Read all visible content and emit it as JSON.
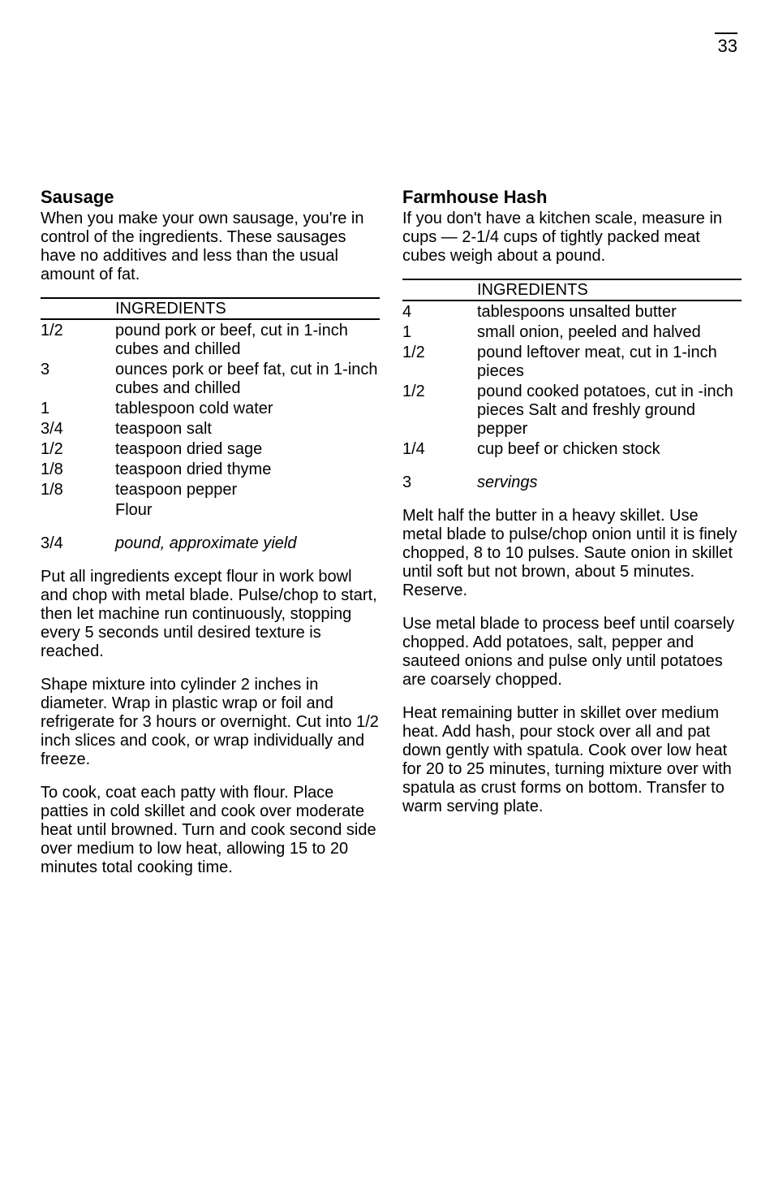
{
  "page_number": "33",
  "recipes": [
    {
      "title": "Sausage",
      "intro": "When you make your own sausage, you're in control of the ingredients. These sausages have no additives and less than the usual amount of fat.",
      "ingredients_label": "INGREDIENTS",
      "ingredients": [
        {
          "qty": "1/2",
          "text": "pound pork or beef, cut in 1-inch cubes and chilled"
        },
        {
          "qty": "3",
          "text": "ounces pork or beef fat, cut in 1-inch cubes and chilled"
        },
        {
          "qty": "1",
          "text": "tablespoon cold water"
        },
        {
          "qty": "3/4",
          "text": "teaspoon salt"
        },
        {
          "qty": "1/2",
          "text": "teaspoon dried sage"
        },
        {
          "qty": "1/8",
          "text": "teaspoon dried thyme"
        },
        {
          "qty": "1/8",
          "text": "teaspoon pepper"
        },
        {
          "qty": "",
          "text": "Flour"
        }
      ],
      "yield": {
        "qty": "3/4",
        "text": "pound, approximate yield"
      },
      "body": [
        "Put all ingredients except flour in work bowl and chop with metal blade. Pulse/chop to start, then let machine run continuously, stopping every 5 seconds until desired texture is reached.",
        "Shape mixture into cylinder 2 inches in diameter. Wrap in plastic wrap or foil and refrigerate for 3 hours or overnight. Cut into 1/2 inch slices and cook, or wrap individually and freeze.",
        "To cook, coat each patty with flour. Place patties in cold skillet and cook over moderate heat until browned. Turn and cook second side over medium to low heat, allowing 15 to 20 minutes total cooking time."
      ]
    },
    {
      "title": "Farmhouse Hash",
      "intro": "If you don't have a kitchen scale, measure in cups — 2-1/4 cups of tightly packed meat cubes weigh about a pound.",
      "ingredients_label": "INGREDIENTS",
      "ingredients": [
        {
          "qty": "4",
          "text": "tablespoons unsalted butter"
        },
        {
          "qty": "1",
          "text": "small onion, peeled and halved"
        },
        {
          "qty": "1/2",
          "text": "pound leftover meat, cut in 1-inch pieces"
        },
        {
          "qty": "1/2",
          "text": "pound cooked potatoes, cut in -inch pieces Salt and freshly ground pepper"
        },
        {
          "qty": "1/4",
          "text": "cup beef or chicken stock"
        }
      ],
      "yield": {
        "qty": "3",
        "text": "servings"
      },
      "body": [
        "Melt half the butter in a heavy skillet. Use metal blade to pulse/chop onion until it is finely chopped, 8 to 10 pulses. Saute onion in skillet until soft but not brown, about 5 minutes. Reserve.",
        "Use metal blade to process beef until coarsely chopped. Add potatoes, salt, pepper and sauteed onions and pulse only until potatoes are coarsely chopped.",
        "Heat remaining butter in skillet over medium heat. Add hash, pour stock over all and pat down gently with spatula. Cook over low heat for 20 to 25 minutes, turning mixture over with spatula as crust forms on bottom. Transfer to warm serving plate."
      ]
    }
  ]
}
